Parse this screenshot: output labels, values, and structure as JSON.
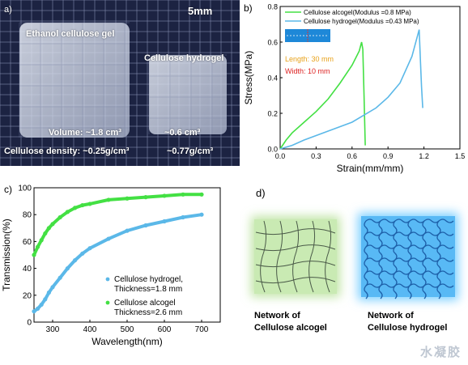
{
  "panel_a": {
    "letter": "a)",
    "scale": "5mm",
    "alcogel_label": "Ethanol cellulose gel",
    "hydrogel_label": "Cellulose hydrogel",
    "volume_label": "Volume: ~1.8 cm³",
    "volume_hydrogel": "~0.6 cm³",
    "density_label": "Cellulose density: ~0.25g/cm³",
    "density_hydrogel": "~0.77g/cm³"
  },
  "panel_d": {
    "letter": "d)",
    "alcogel_caption": "Network of\nCellulose alcogel",
    "hydrogel_caption": "Network of\nCellulose hydrogel"
  },
  "watermark": "水凝胶",
  "colors": {
    "green": "#43e043",
    "blue": "#5bb8e8",
    "photo_bg": "#1c2342"
  },
  "chart_data": [
    {
      "id": "b",
      "letter": "b)",
      "type": "line",
      "xlabel": "Strain(mm/mm)",
      "ylabel": "Stress(MPa)",
      "xlim": [
        0.0,
        1.5
      ],
      "ylim": [
        0.0,
        0.8
      ],
      "xticks": [
        "0.0",
        "0.3",
        "0.6",
        "0.9",
        "1.2",
        "1.5"
      ],
      "yticks": [
        "0.0",
        "0.2",
        "0.4",
        "0.6",
        "0.8"
      ],
      "inset": {
        "length": "Length: 30 mm",
        "width": "Width: 10 mm"
      },
      "series": [
        {
          "name": "Cellulose alcogel(Modulus =0.8 MPa)",
          "color": "#43e043",
          "x": [
            0,
            0.05,
            0.1,
            0.2,
            0.3,
            0.4,
            0.5,
            0.6,
            0.66,
            0.68,
            0.69,
            0.7,
            0.71
          ],
          "y": [
            0,
            0.05,
            0.09,
            0.15,
            0.21,
            0.28,
            0.37,
            0.47,
            0.55,
            0.6,
            0.56,
            0.3,
            0.02
          ]
        },
        {
          "name": "Cellulose hydrogel(Modulus =0.43 MPa)",
          "color": "#5bb8e8",
          "x": [
            0,
            0.1,
            0.2,
            0.4,
            0.6,
            0.8,
            0.9,
            1.0,
            1.1,
            1.16,
            1.17,
            1.18,
            1.19
          ],
          "y": [
            0,
            0.02,
            0.05,
            0.1,
            0.15,
            0.23,
            0.29,
            0.37,
            0.52,
            0.67,
            0.5,
            0.35,
            0.23
          ]
        }
      ]
    },
    {
      "id": "c",
      "letter": "c)",
      "type": "scatter",
      "xlabel": "Wavelength(nm)",
      "ylabel": "Transmission(%)",
      "xlim": [
        250,
        750
      ],
      "ylim": [
        0,
        100
      ],
      "xticks": [
        "300",
        "400",
        "500",
        "600",
        "700"
      ],
      "yticks": [
        "0",
        "20",
        "40",
        "60",
        "80",
        "100"
      ],
      "series": [
        {
          "name": "Cellulose hydrogel,\nThickness=1.8 mm",
          "color": "#5bb8e8",
          "x": [
            250,
            260,
            270,
            280,
            290,
            300,
            320,
            340,
            360,
            380,
            400,
            450,
            500,
            550,
            600,
            650,
            700
          ],
          "y": [
            8,
            10,
            13,
            17,
            22,
            26,
            33,
            40,
            46,
            51,
            55,
            62,
            68,
            72,
            75,
            78,
            80
          ]
        },
        {
          "name": "Cellulose alcogel\nThickness=2.6 mm",
          "color": "#43e043",
          "x": [
            250,
            260,
            270,
            280,
            290,
            300,
            320,
            340,
            360,
            380,
            400,
            450,
            500,
            550,
            600,
            650,
            700
          ],
          "y": [
            50,
            56,
            61,
            66,
            70,
            73,
            78,
            82,
            85,
            87,
            88,
            91,
            92,
            93,
            94,
            95,
            95
          ]
        }
      ]
    }
  ]
}
